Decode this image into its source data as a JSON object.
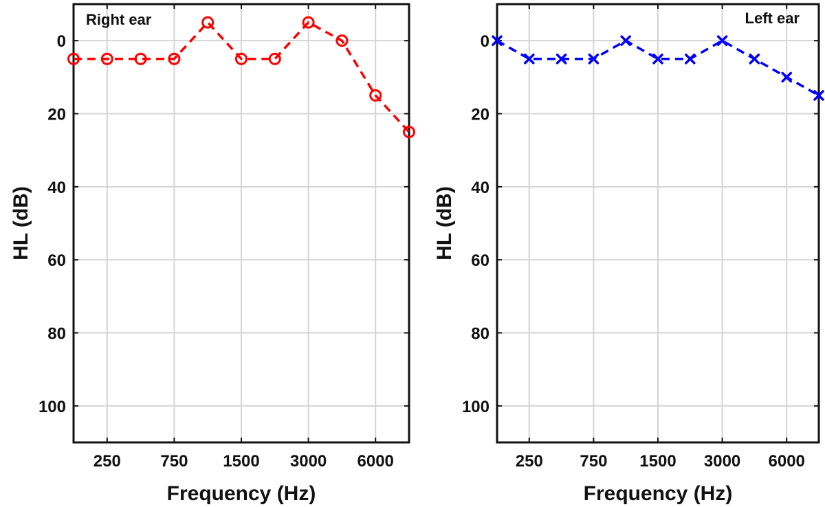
{
  "chart_data": [
    {
      "type": "line",
      "title": "",
      "annotation": "Right ear",
      "xlabel": "Frequency (Hz)",
      "ylabel": "HL (dB)",
      "x_positions": [
        1,
        2,
        3,
        4,
        5,
        6,
        7,
        8,
        9,
        10,
        11
      ],
      "x_ticks": [
        {
          "pos": 2,
          "label": "250"
        },
        {
          "pos": 4,
          "label": "750"
        },
        {
          "pos": 6,
          "label": "1500"
        },
        {
          "pos": 8,
          "label": "3000"
        },
        {
          "pos": 10,
          "label": "6000"
        }
      ],
      "xlim": [
        1,
        11
      ],
      "y_ticks": [
        0,
        20,
        40,
        60,
        80,
        100
      ],
      "y_tick_labels": [
        "0",
        "20",
        "40",
        "60",
        "80",
        "100"
      ],
      "ylim": [
        -10,
        110
      ],
      "y_reversed": true,
      "grid": true,
      "series": [
        {
          "values": [
            5,
            5,
            5,
            5,
            -5,
            5,
            5,
            -5,
            0,
            15,
            25
          ],
          "color": "#ff0000",
          "marker": "circle",
          "line": "dashed"
        }
      ]
    },
    {
      "type": "line",
      "title": "",
      "annotation": "Left ear",
      "xlabel": "Frequency (Hz)",
      "ylabel": "HL (dB)",
      "x_positions": [
        1,
        2,
        3,
        4,
        5,
        6,
        7,
        8,
        9,
        10,
        11
      ],
      "x_ticks": [
        {
          "pos": 2,
          "label": "250"
        },
        {
          "pos": 4,
          "label": "750"
        },
        {
          "pos": 6,
          "label": "1500"
        },
        {
          "pos": 8,
          "label": "3000"
        },
        {
          "pos": 10,
          "label": "6000"
        }
      ],
      "xlim": [
        1,
        11
      ],
      "y_ticks": [
        0,
        20,
        40,
        60,
        80,
        100
      ],
      "y_tick_labels": [
        "0",
        "20",
        "40",
        "60",
        "80",
        "100"
      ],
      "ylim": [
        -10,
        110
      ],
      "y_reversed": true,
      "grid": true,
      "series": [
        {
          "values": [
            0,
            5,
            5,
            5,
            0,
            5,
            5,
            0,
            5,
            10,
            15
          ],
          "color": "#0000ff",
          "marker": "x",
          "line": "dashed"
        }
      ]
    }
  ]
}
